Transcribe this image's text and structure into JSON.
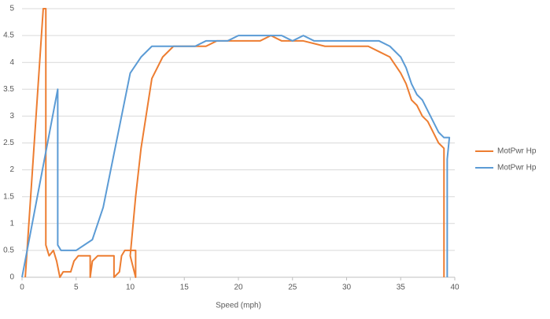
{
  "chart_data": {
    "type": "line",
    "xlabel": "Speed (mph)",
    "xlim": [
      0,
      40
    ],
    "xticks": [
      0,
      5,
      10,
      15,
      20,
      25,
      30,
      35,
      40
    ],
    "ylim": [
      0,
      5
    ],
    "yticks": [
      0,
      0.5,
      1,
      1.5,
      2,
      2.5,
      3,
      3.5,
      4,
      4.5,
      5
    ],
    "grid": true,
    "legend": "right",
    "series": [
      {
        "name": "MotPwr Hp",
        "color": "#ed7d31",
        "x": [
          0.3,
          1.96,
          2.2,
          2.2,
          2.5,
          2.9,
          3.2,
          3.5,
          3.8,
          4.5,
          4.8,
          5.2,
          6.3,
          6.3,
          6.5,
          7.0,
          8.5,
          8.5,
          9.0,
          9.2,
          9.5,
          10.5,
          10.5,
          10.0,
          10.5,
          11.0,
          12.0,
          13.0,
          14.0,
          16,
          17,
          18,
          20,
          22,
          23,
          24,
          26,
          28,
          30,
          31,
          32,
          33,
          34,
          35,
          35.5,
          36,
          36.5,
          37,
          37.5,
          38,
          38.5,
          39.0,
          39.0
        ],
        "values": [
          0,
          5,
          5,
          0.6,
          0.4,
          0.5,
          0.3,
          0,
          0.1,
          0.1,
          0.3,
          0.4,
          0.4,
          0,
          0.3,
          0.4,
          0.4,
          0,
          0.1,
          0.4,
          0.5,
          0.5,
          0,
          0.4,
          1.5,
          2.4,
          3.7,
          4.1,
          4.3,
          4.3,
          4.3,
          4.4,
          4.4,
          4.4,
          4.5,
          4.4,
          4.4,
          4.3,
          4.3,
          4.3,
          4.3,
          4.2,
          4.1,
          3.8,
          3.6,
          3.3,
          3.2,
          3.0,
          2.9,
          2.7,
          2.5,
          2.4,
          0
        ]
      },
      {
        "name": "MotPwr Hp",
        "color": "#5b9bd5",
        "x": [
          0,
          3.3,
          3.3,
          3.6,
          5,
          6.5,
          7.5,
          8.5,
          9.5,
          10,
          11,
          12,
          14,
          16,
          17,
          19,
          20,
          22,
          24,
          25,
          26,
          27,
          31,
          33,
          34,
          35,
          35.5,
          36,
          36.5,
          37,
          37.5,
          38,
          38.5,
          39,
          39.5,
          39.3,
          39.3
        ],
        "values": [
          0,
          3.5,
          0.6,
          0.5,
          0.5,
          0.7,
          1.3,
          2.3,
          3.3,
          3.8,
          4.1,
          4.3,
          4.3,
          4.3,
          4.4,
          4.4,
          4.5,
          4.5,
          4.5,
          4.4,
          4.5,
          4.4,
          4.4,
          4.4,
          4.3,
          4.1,
          3.9,
          3.6,
          3.4,
          3.3,
          3.1,
          2.9,
          2.7,
          2.6,
          2.6,
          2.2,
          0
        ]
      }
    ]
  }
}
